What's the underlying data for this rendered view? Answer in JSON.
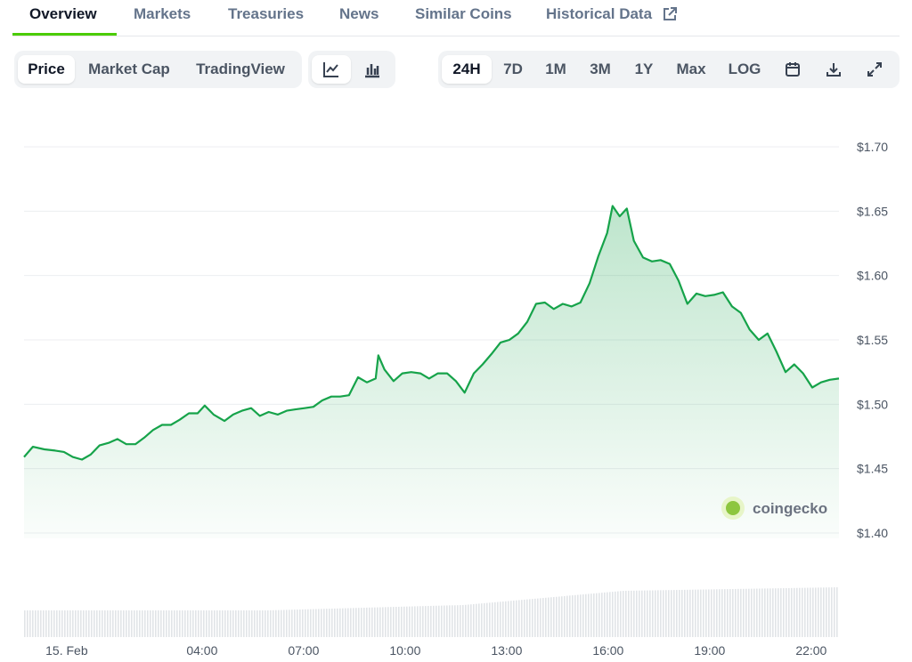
{
  "tabs": [
    "Overview",
    "Markets",
    "Treasuries",
    "News",
    "Similar Coins",
    "Historical Data"
  ],
  "view_buttons": [
    "Price",
    "Market Cap",
    "TradingView"
  ],
  "range_buttons": [
    "24H",
    "7D",
    "1M",
    "3M",
    "1Y",
    "Max",
    "LOG"
  ],
  "watermark": "coingecko",
  "chart_data": {
    "type": "area",
    "series": [
      {
        "color": "#16a34a",
        "x": [
          -1.26,
          -1.0,
          -0.66,
          -0.34,
          -0.08,
          0.18,
          0.45,
          0.71,
          0.97,
          1.24,
          1.5,
          1.76,
          2.03,
          2.29,
          2.55,
          2.82,
          3.08,
          3.34,
          3.61,
          3.87,
          4.08,
          4.34,
          4.66,
          4.92,
          5.18,
          5.45,
          5.71,
          5.97,
          6.24,
          6.5,
          6.76,
          7.03,
          7.29,
          7.55,
          7.82,
          8.08,
          8.34,
          8.61,
          8.87,
          9.13,
          9.21,
          9.39,
          9.66,
          9.92,
          10.18,
          10.45,
          10.71,
          10.97,
          11.24,
          11.5,
          11.76,
          12.03,
          12.29,
          12.55,
          12.82,
          13.08,
          13.34,
          13.61,
          13.87,
          14.13,
          14.39,
          14.66,
          14.92,
          15.18,
          15.45,
          15.71,
          15.97,
          16.13,
          16.34,
          16.55,
          16.76,
          17.03,
          17.29,
          17.55,
          17.82,
          18.08,
          18.34,
          18.61,
          18.87,
          19.13,
          19.39,
          19.66,
          19.92,
          20.18,
          20.45,
          20.71,
          20.97,
          21.24,
          21.5,
          21.76,
          22.03,
          22.29,
          22.55,
          22.82
        ],
        "values": [
          1.459,
          1.467,
          1.465,
          1.464,
          1.463,
          1.459,
          1.457,
          1.461,
          1.468,
          1.47,
          1.473,
          1.469,
          1.469,
          1.474,
          1.48,
          1.484,
          1.484,
          1.488,
          1.493,
          1.493,
          1.499,
          1.492,
          1.487,
          1.492,
          1.495,
          1.497,
          1.491,
          1.494,
          1.492,
          1.495,
          1.496,
          1.497,
          1.498,
          1.503,
          1.506,
          1.506,
          1.507,
          1.521,
          1.517,
          1.52,
          1.538,
          1.527,
          1.518,
          1.524,
          1.525,
          1.524,
          1.52,
          1.524,
          1.524,
          1.518,
          1.509,
          1.524,
          1.531,
          1.539,
          1.548,
          1.55,
          1.555,
          1.564,
          1.578,
          1.579,
          1.574,
          1.578,
          1.576,
          1.579,
          1.594,
          1.615,
          1.633,
          1.654,
          1.646,
          1.652,
          1.627,
          1.614,
          1.611,
          1.612,
          1.609,
          1.596,
          1.578,
          1.586,
          1.584,
          1.585,
          1.587,
          1.576,
          1.571,
          1.558,
          1.55,
          1.555,
          1.541,
          1.525,
          1.531,
          1.524,
          1.513,
          1.517,
          1.519,
          1.52
        ]
      }
    ],
    "xlim": [
      -1.26,
      22.82
    ],
    "xticks": [
      {
        "value": 0,
        "label": "15. Feb"
      },
      {
        "value": 4,
        "label": "04:00"
      },
      {
        "value": 7,
        "label": "07:00"
      },
      {
        "value": 10,
        "label": "10:00"
      },
      {
        "value": 13,
        "label": "13:00"
      },
      {
        "value": 16,
        "label": "16:00"
      },
      {
        "value": 19,
        "label": "19:00"
      },
      {
        "value": 22,
        "label": "22:00"
      }
    ],
    "ylim": [
      1.4,
      1.7
    ],
    "yticks": [
      {
        "value": 1.4,
        "label": "$1.40"
      },
      {
        "value": 1.45,
        "label": "$1.45"
      },
      {
        "value": 1.5,
        "label": "$1.50"
      },
      {
        "value": 1.55,
        "label": "$1.55"
      },
      {
        "value": 1.6,
        "label": "$1.60"
      },
      {
        "value": 1.65,
        "label": "$1.65"
      },
      {
        "value": 1.7,
        "label": "$1.70"
      }
    ],
    "grid": true
  }
}
